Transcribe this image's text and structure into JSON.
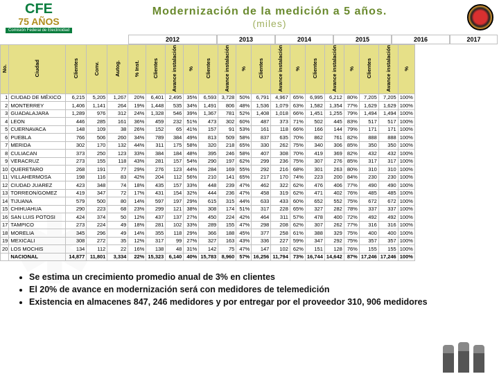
{
  "header": {
    "logo_cfe": "CFE",
    "logo_years": "75 AÑOS",
    "logo_bar": "Comisión Federal de Electricidad",
    "title": "Modernización de la medición a 5 años.",
    "subtitle": "(miles)"
  },
  "years": {
    "y2012": "2012",
    "y2013": "2013",
    "y2014": "2014",
    "y2015": "2015",
    "y2016": "2016",
    "y2017": "2017"
  },
  "cols": {
    "no": "No.",
    "ciudad": "Ciudad",
    "clientes12": "Clientes",
    "conv": "Conv.",
    "autog": "Autog.",
    "pct_inst": "% Inst.",
    "clientes": "Clientes",
    "avance": "Avance instalación",
    "pct": "%"
  },
  "rows": [
    {
      "no": "1",
      "city": "CIUDAD DE MÉXICO",
      "cli12": "6,215",
      "conv": "5,205",
      "auto": "1,267",
      "pinst": "20%",
      "c13": "6,401",
      "a13": "2,495",
      "p13": "35%",
      "c14": "6,593",
      "a14": "3,728",
      "p14": "50%",
      "c15": "6,791",
      "a15": "4,967",
      "p15": "65%",
      "c16": "6,995",
      "a16": "6,212",
      "p16": "80%",
      "c17": "7,205",
      "a17": "7,205",
      "p17": "100%"
    },
    {
      "no": "2",
      "city": "MONTERREY",
      "cli12": "1,406",
      "conv": "1,141",
      "auto": "264",
      "pinst": "19%",
      "c13": "1,448",
      "a13": "535",
      "p13": "34%",
      "c14": "1,491",
      "a14": "806",
      "p14": "48%",
      "c15": "1,536",
      "a15": "1,079",
      "p15": "63%",
      "c16": "1,582",
      "a16": "1,354",
      "p16": "77%",
      "c17": "1,629",
      "a17": "1,629",
      "p17": "100%"
    },
    {
      "no": "3",
      "city": "GUADALAJARA",
      "cli12": "1,289",
      "conv": "976",
      "auto": "312",
      "pinst": "24%",
      "c13": "1,328",
      "a13": "546",
      "p13": "39%",
      "c14": "1,367",
      "a14": "781",
      "p14": "52%",
      "c15": "1,408",
      "a15": "1,018",
      "p15": "66%",
      "c16": "1,451",
      "a16": "1,255",
      "p16": "79%",
      "c17": "1,494",
      "a17": "1,494",
      "p17": "100%"
    },
    {
      "no": "4",
      "city": "LEON",
      "cli12": "446",
      "conv": "285",
      "auto": "161",
      "pinst": "36%",
      "c13": "459",
      "a13": "232",
      "p13": "51%",
      "c14": "473",
      "a14": "302",
      "p14": "60%",
      "c15": "487",
      "a15": "373",
      "p15": "71%",
      "c16": "502",
      "a16": "445",
      "p16": "83%",
      "c17": "517",
      "a17": "517",
      "p17": "100%"
    },
    {
      "no": "5",
      "city": "CUERNAVACA",
      "cli12": "148",
      "conv": "109",
      "auto": "38",
      "pinst": "26%",
      "c13": "152",
      "a13": "65",
      "p13": "41%",
      "c14": "157",
      "a14": "91",
      "p14": "53%",
      "c15": "161",
      "a15": "118",
      "p15": "66%",
      "c16": "166",
      "a16": "144",
      "p16": "79%",
      "c17": "171",
      "a17": "171",
      "p17": "100%"
    },
    {
      "no": "6",
      "city": "PUEBLA",
      "cli12": "766",
      "conv": "506",
      "auto": "260",
      "pinst": "34%",
      "c13": "789",
      "a13": "384",
      "p13": "49%",
      "c14": "813",
      "a14": "509",
      "p14": "58%",
      "c15": "837",
      "a15": "635",
      "p15": "70%",
      "c16": "862",
      "a16": "761",
      "p16": "82%",
      "c17": "888",
      "a17": "888",
      "p17": "100%"
    },
    {
      "no": "7",
      "city": "MERIDA",
      "cli12": "302",
      "conv": "170",
      "auto": "132",
      "pinst": "44%",
      "c13": "311",
      "a13": "175",
      "p13": "58%",
      "c14": "320",
      "a14": "218",
      "p14": "65%",
      "c15": "330",
      "a15": "262",
      "p15": "75%",
      "c16": "340",
      "a16": "306",
      "p16": "85%",
      "c17": "350",
      "a17": "350",
      "p17": "100%"
    },
    {
      "no": "8",
      "city": "CULIACAN",
      "cli12": "373",
      "conv": "250",
      "auto": "123",
      "pinst": "33%",
      "c13": "384",
      "a13": "184",
      "p13": "48%",
      "c14": "395",
      "a14": "246",
      "p14": "58%",
      "c15": "407",
      "a15": "308",
      "p15": "70%",
      "c16": "419",
      "a16": "369",
      "p16": "82%",
      "c17": "432",
      "a17": "432",
      "p17": "100%"
    },
    {
      "no": "9",
      "city": "VERACRUZ",
      "cli12": "273",
      "conv": "155",
      "auto": "118",
      "pinst": "43%",
      "c13": "281",
      "a13": "157",
      "p13": "54%",
      "c14": "290",
      "a14": "197",
      "p14": "62%",
      "c15": "299",
      "a15": "236",
      "p15": "75%",
      "c16": "307",
      "a16": "276",
      "p16": "85%",
      "c17": "317",
      "a17": "317",
      "p17": "100%"
    },
    {
      "no": "10",
      "city": "QUERETARO",
      "cli12": "268",
      "conv": "191",
      "auto": "77",
      "pinst": "29%",
      "c13": "276",
      "a13": "123",
      "p13": "44%",
      "c14": "284",
      "a14": "169",
      "p14": "55%",
      "c15": "292",
      "a15": "216",
      "p15": "68%",
      "c16": "301",
      "a16": "263",
      "p16": "80%",
      "c17": "310",
      "a17": "310",
      "p17": "100%"
    },
    {
      "no": "11",
      "city": "VILLAHERMOSA",
      "cli12": "198",
      "conv": "116",
      "auto": "83",
      "pinst": "42%",
      "c13": "204",
      "a13": "112",
      "p13": "56%",
      "c14": "210",
      "a14": "141",
      "p14": "65%",
      "c15": "217",
      "a15": "170",
      "p15": "74%",
      "c16": "223",
      "a16": "200",
      "p16": "84%",
      "c17": "230",
      "a17": "230",
      "p17": "100%"
    },
    {
      "no": "12",
      "city": "CIUDAD JUAREZ",
      "cli12": "423",
      "conv": "348",
      "auto": "74",
      "pinst": "18%",
      "c13": "435",
      "a13": "157",
      "p13": "33%",
      "c14": "448",
      "a14": "239",
      "p14": "47%",
      "c15": "462",
      "a15": "322",
      "p15": "62%",
      "c16": "476",
      "a16": "406",
      "p16": "77%",
      "c17": "490",
      "a17": "490",
      "p17": "100%"
    },
    {
      "no": "13",
      "city": "TORREON/GOMEZ",
      "cli12": "419",
      "conv": "347",
      "auto": "72",
      "pinst": "17%",
      "c13": "431",
      "a13": "154",
      "p13": "32%",
      "c14": "444",
      "a14": "236",
      "p14": "47%",
      "c15": "458",
      "a15": "319",
      "p15": "62%",
      "c16": "471",
      "a16": "402",
      "p16": "76%",
      "c17": "485",
      "a17": "485",
      "p17": "100%"
    },
    {
      "no": "14",
      "city": "TIJUANA",
      "cli12": "579",
      "conv": "500",
      "auto": "80",
      "pinst": "14%",
      "c13": "597",
      "a13": "197",
      "p13": "29%",
      "c14": "615",
      "a14": "315",
      "p14": "44%",
      "c15": "633",
      "a15": "433",
      "p15": "60%",
      "c16": "652",
      "a16": "552",
      "p16": "75%",
      "c17": "672",
      "a17": "672",
      "p17": "100%"
    },
    {
      "no": "15",
      "city": "CHIHUAHUA",
      "cli12": "290",
      "conv": "223",
      "auto": "68",
      "pinst": "23%",
      "c13": "299",
      "a13": "121",
      "p13": "38%",
      "c14": "308",
      "a14": "174",
      "p14": "51%",
      "c15": "317",
      "a15": "228",
      "p15": "65%",
      "c16": "327",
      "a16": "282",
      "p16": "78%",
      "c17": "337",
      "a17": "337",
      "p17": "100%"
    },
    {
      "no": "16",
      "city": "SAN LUIS POTOSI",
      "cli12": "424",
      "conv": "374",
      "auto": "50",
      "pinst": "12%",
      "c13": "437",
      "a13": "137",
      "p13": "27%",
      "c14": "450",
      "a14": "224",
      "p14": "42%",
      "c15": "464",
      "a15": "311",
      "p15": "57%",
      "c16": "478",
      "a16": "400",
      "p16": "72%",
      "c17": "492",
      "a17": "492",
      "p17": "100%"
    },
    {
      "no": "17",
      "city": "TAMPICO",
      "cli12": "273",
      "conv": "224",
      "auto": "49",
      "pinst": "18%",
      "c13": "281",
      "a13": "102",
      "p13": "33%",
      "c14": "289",
      "a14": "155",
      "p14": "47%",
      "c15": "298",
      "a15": "208",
      "p15": "62%",
      "c16": "307",
      "a16": "262",
      "p16": "77%",
      "c17": "316",
      "a17": "316",
      "p17": "100%"
    },
    {
      "no": "18",
      "city": "MORELIA",
      "cli12": "345",
      "conv": "296",
      "auto": "49",
      "pinst": "14%",
      "c13": "355",
      "a13": "118",
      "p13": "29%",
      "c14": "366",
      "a14": "188",
      "p14": "45%",
      "c15": "377",
      "a15": "258",
      "p15": "61%",
      "c16": "388",
      "a16": "329",
      "p16": "75%",
      "c17": "400",
      "a17": "400",
      "p17": "100%"
    },
    {
      "no": "19",
      "city": "MEXICALI",
      "cli12": "308",
      "conv": "272",
      "auto": "35",
      "pinst": "12%",
      "c13": "317",
      "a13": "99",
      "p13": "27%",
      "c14": "327",
      "a14": "163",
      "p14": "43%",
      "c15": "336",
      "a15": "227",
      "p15": "59%",
      "c16": "347",
      "a16": "292",
      "p16": "75%",
      "c17": "357",
      "a17": "357",
      "p17": "100%"
    },
    {
      "no": "20",
      "city": "LOS MOCHIS",
      "cli12": "134",
      "conv": "112",
      "auto": "22",
      "pinst": "16%",
      "c13": "138",
      "a13": "48",
      "p13": "31%",
      "c14": "142",
      "a14": "75",
      "p14": "47%",
      "c15": "147",
      "a15": "102",
      "p15": "62%",
      "c16": "151",
      "a16": "128",
      "p16": "76%",
      "c17": "155",
      "a17": "155",
      "p17": "100%"
    }
  ],
  "total": {
    "no": "",
    "city": "NACIONAL",
    "cli12": "14,877",
    "conv": "11,801",
    "auto": "3,334",
    "pinst": "22%",
    "c13": "15,323",
    "a13": "6,140",
    "p13": "40%",
    "c14": "15,783",
    "a14": "8,960",
    "p14": "57%",
    "c15": "16,256",
    "a15": "11,794",
    "p15": "73%",
    "c16": "16,744",
    "a16": "14,642",
    "p16": "87%",
    "c17": "17,246",
    "a17": "17,246",
    "p17": "100%"
  },
  "bullets": {
    "b1": "Se estima un crecimiento promedio anual de 3% en clientes",
    "b2": "El 20% de avance en modernización será con medidores de telemedición",
    "b3": "Existencia en almacenes 847, 246 medidores y por entregar por el proveedor 310, 906 medidores"
  },
  "colors": {
    "title": "#6a8a2e",
    "header_bg": "#e6e088",
    "border": "#bfbfbf",
    "cfe_green": "#0a7d3e",
    "cfe_gold": "#b08d1e"
  }
}
